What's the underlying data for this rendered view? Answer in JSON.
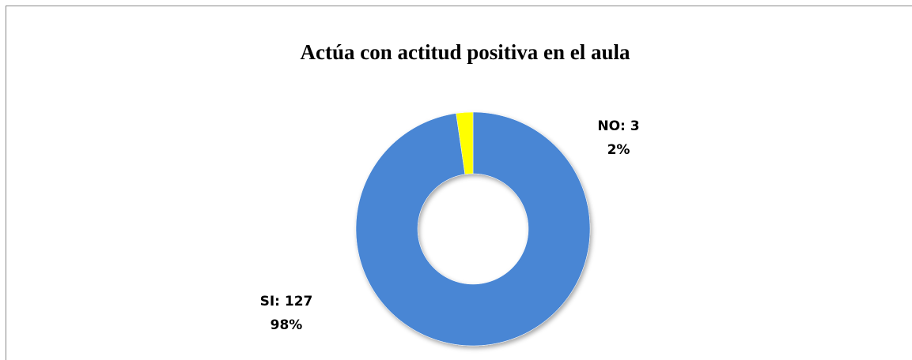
{
  "chart_data": {
    "type": "donut",
    "title": "Actúa con actitud positiva en el aula",
    "categories": [
      "SI",
      "NO"
    ],
    "values": [
      127,
      3
    ],
    "value_labels": [
      "SI: 127",
      "NO: 3"
    ],
    "percentages": [
      98,
      2
    ],
    "percentage_labels": [
      "98%",
      "2%"
    ],
    "colors": [
      "#4a86d4",
      "#ffff00"
    ]
  }
}
